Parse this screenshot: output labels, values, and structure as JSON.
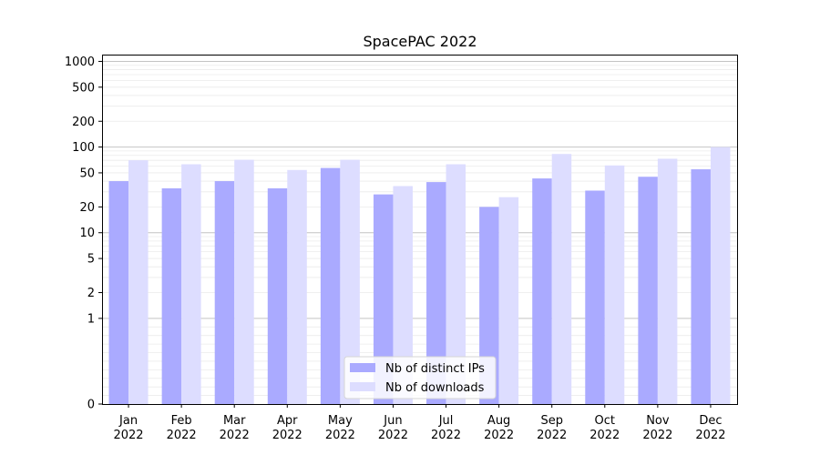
{
  "chart_data": {
    "type": "bar",
    "title": "SpacePAC 2022",
    "xlabel": "",
    "ylabel": "",
    "yscale": "symlog",
    "ylim": [
      0,
      1200
    ],
    "yticks": [
      0,
      1,
      2,
      5,
      10,
      20,
      50,
      100,
      200,
      500,
      1000
    ],
    "categories": [
      "Jan\n2022",
      "Feb\n2022",
      "Mar\n2022",
      "Apr\n2022",
      "May\n2022",
      "Jun\n2022",
      "Jul\n2022",
      "Aug\n2022",
      "Sep\n2022",
      "Oct\n2022",
      "Nov\n2022",
      "Dec\n2022"
    ],
    "series": [
      {
        "name": "Nb of distinct IPs",
        "color": "#aaaaff",
        "values": [
          40,
          33,
          40,
          33,
          57,
          28,
          39,
          20,
          43,
          31,
          45,
          55
        ]
      },
      {
        "name": "Nb of downloads",
        "color": "#ddddff",
        "values": [
          70,
          63,
          71,
          54,
          71,
          35,
          63,
          26,
          83,
          61,
          73,
          100
        ]
      }
    ],
    "grid": true,
    "legend_position": "lower-center"
  }
}
